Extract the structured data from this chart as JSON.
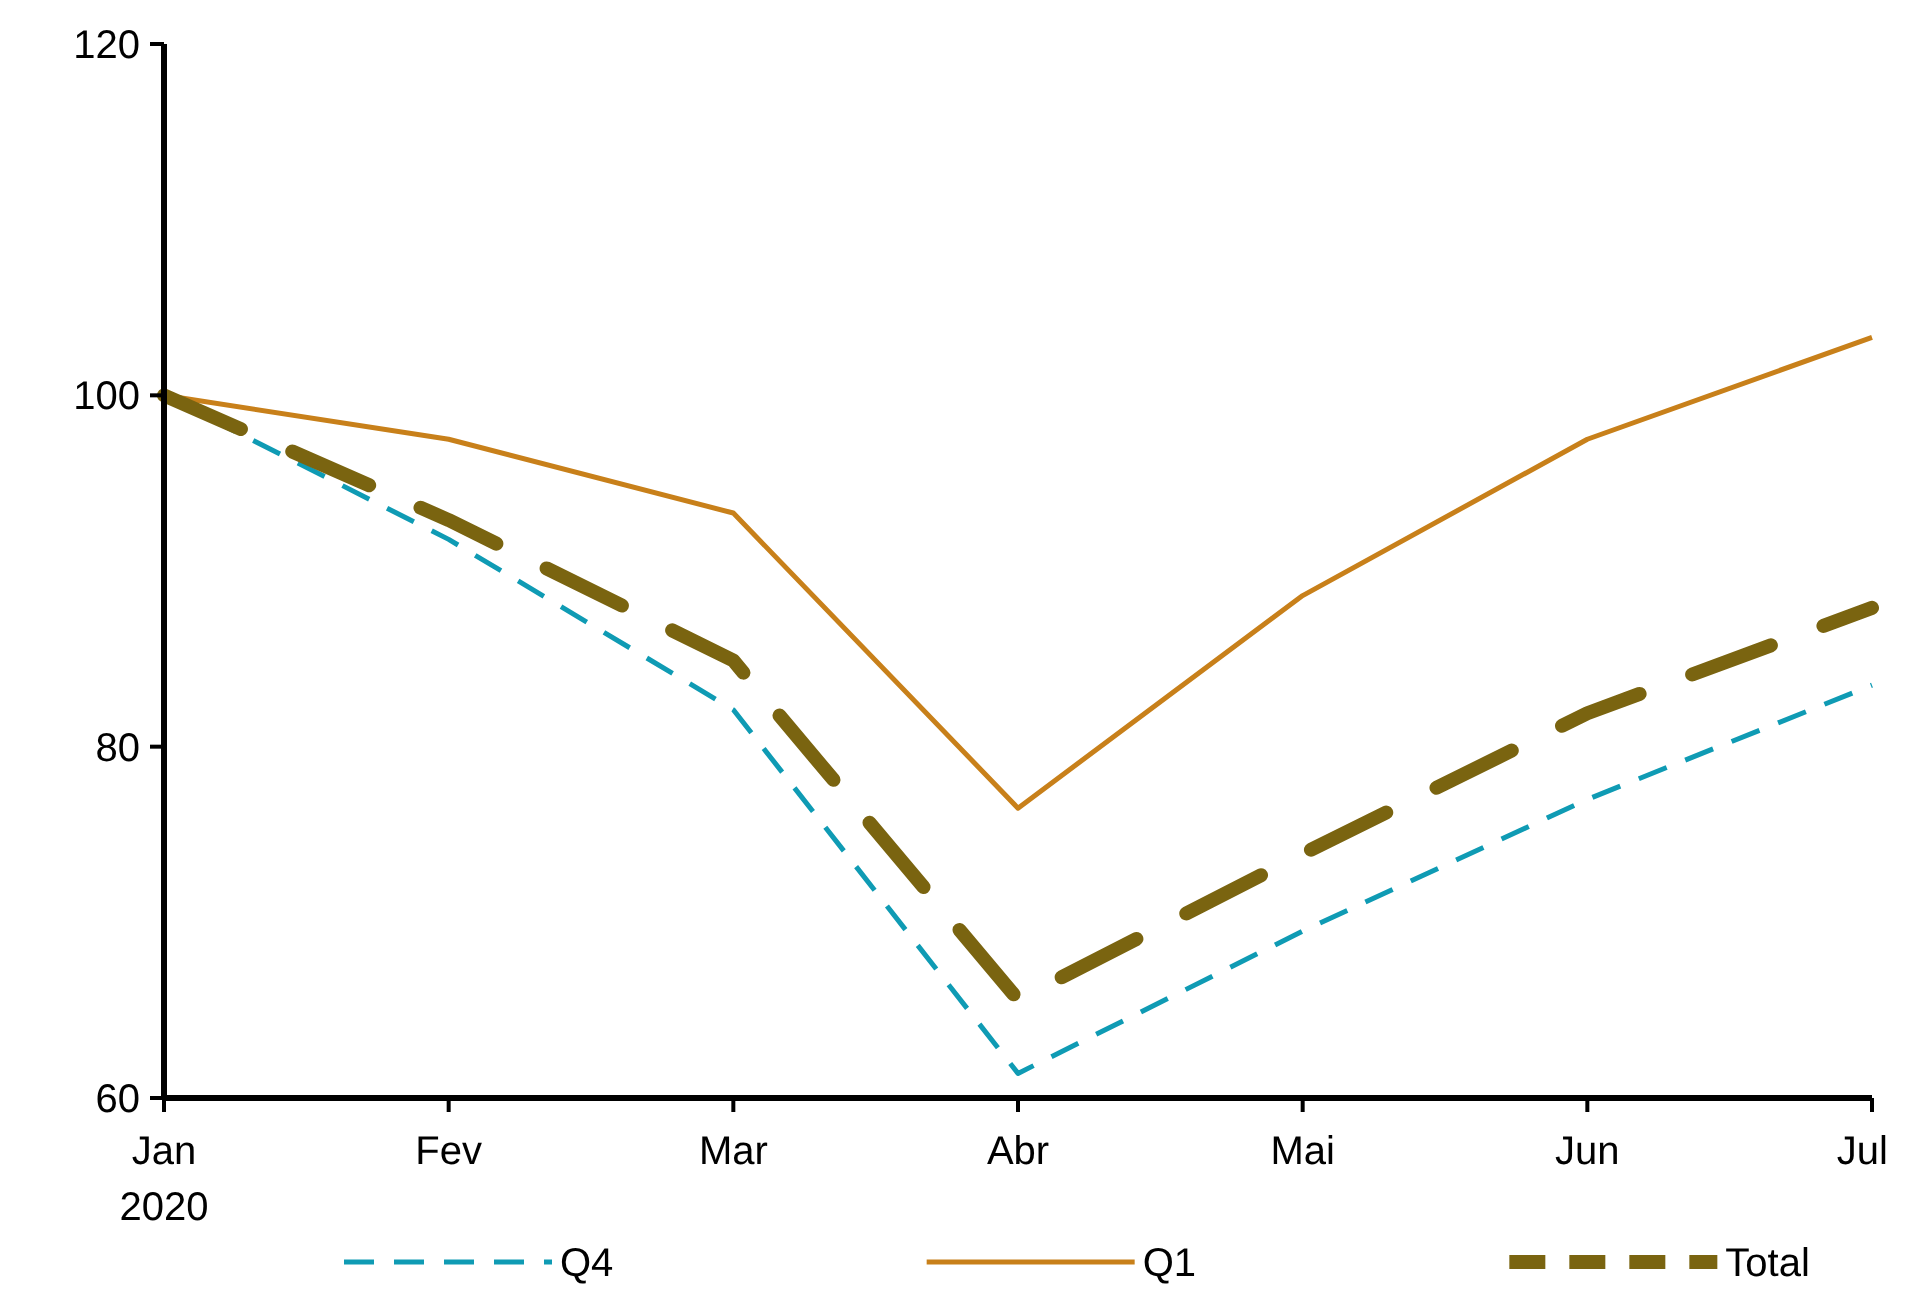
{
  "chart_data": {
    "type": "line",
    "categories": [
      "Jan\n2020",
      "Fev",
      "Mar",
      "Abr",
      "Mai",
      "Jun",
      "Jul"
    ],
    "ylim": [
      60,
      120
    ],
    "yticks": [
      60,
      80,
      100,
      120
    ],
    "grid": false,
    "legend": "bottom",
    "series": [
      {
        "name": "Q4",
        "color": "#0f9bb4",
        "line_style": "dashed",
        "values": [
          100,
          91.8,
          82.1,
          61.4,
          69.5,
          77,
          83.5
        ]
      },
      {
        "name": "Q1",
        "color": "#c8801a",
        "line_style": "solid",
        "values": [
          100,
          97.5,
          93.3,
          76.5,
          88.6,
          97.5,
          103.3
        ]
      },
      {
        "name": "Total",
        "color": "#7a6410",
        "line_style": "dashed",
        "values": [
          100,
          92.9,
          84.9,
          65.6,
          73.9,
          81.9,
          87.9
        ]
      }
    ]
  }
}
